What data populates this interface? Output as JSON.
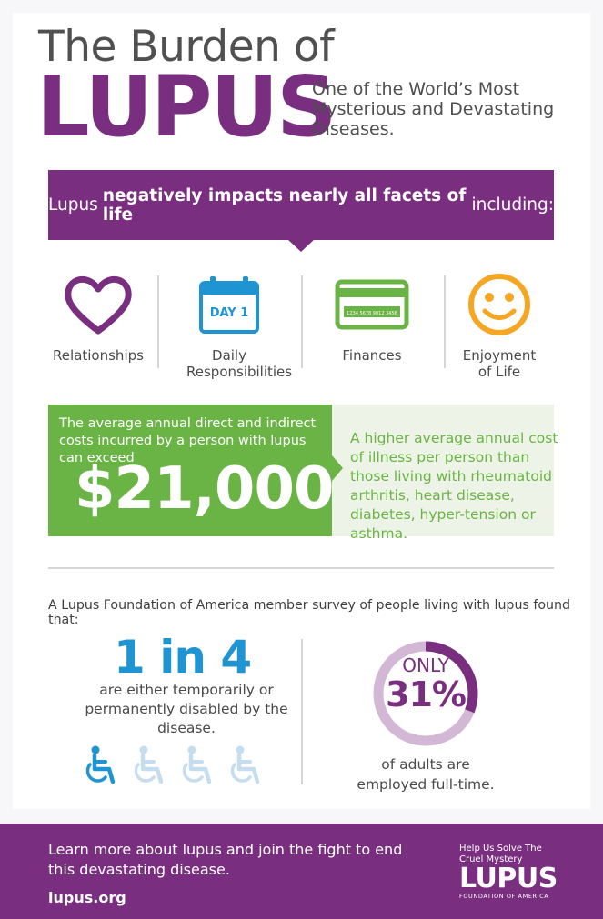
{
  "header": {
    "title_line1": "The Burden of",
    "title_line2": "LUPUS",
    "subtitle": "One of the World’s Most Mysterious and Devastating Diseases."
  },
  "banner": {
    "prefix": "Lupus ",
    "emphasis": "negatively impacts nearly all facets of life",
    "suffix": " including:"
  },
  "facets": [
    {
      "label": "Relationships",
      "icon": "heart-icon"
    },
    {
      "label": "Daily Responsibilities",
      "icon": "calendar-icon",
      "icon_text": "DAY 1"
    },
    {
      "label": "Finances",
      "icon": "credit-card-icon",
      "icon_text": "1234 5678 9012 3456"
    },
    {
      "label": "Enjoyment of Life",
      "icon": "smiley-icon"
    }
  ],
  "cost": {
    "description": "The average annual direct and indirect costs incurred by a person with lupus can exceed",
    "amount": "$21,000",
    "comparison": "A higher average annual cost of illness per person than those living with rheumatoid arthritis, heart disease, diabetes, hyper-tension or asthma."
  },
  "survey": {
    "intro": "A Lupus Foundation of America member survey of people living with lupus found that:",
    "disabled": {
      "stat": "1 in 4",
      "description": "are either temporarily or permanently disabled by the disease.",
      "icon": "wheelchair-icon",
      "highlighted_count": 1,
      "total_count": 4
    },
    "employed": {
      "prefix": "ONLY",
      "stat": "31%",
      "value": 31,
      "description": "of adults are employed full-time."
    }
  },
  "footer": {
    "learn": "Learn more about lupus and join the fight to end this devastating disease.",
    "url": "lupus.org",
    "logo_tagline": "Help Us Solve The Cruel Mystery",
    "logo_word": "LUPUS",
    "logo_org": "FOUNDATION OF AMERICA"
  },
  "colors": {
    "purple": "#7a2e80",
    "green": "#6ab445",
    "blue": "#1f94d2",
    "light_blue": "#c4ddef",
    "orange": "#f5a623"
  }
}
